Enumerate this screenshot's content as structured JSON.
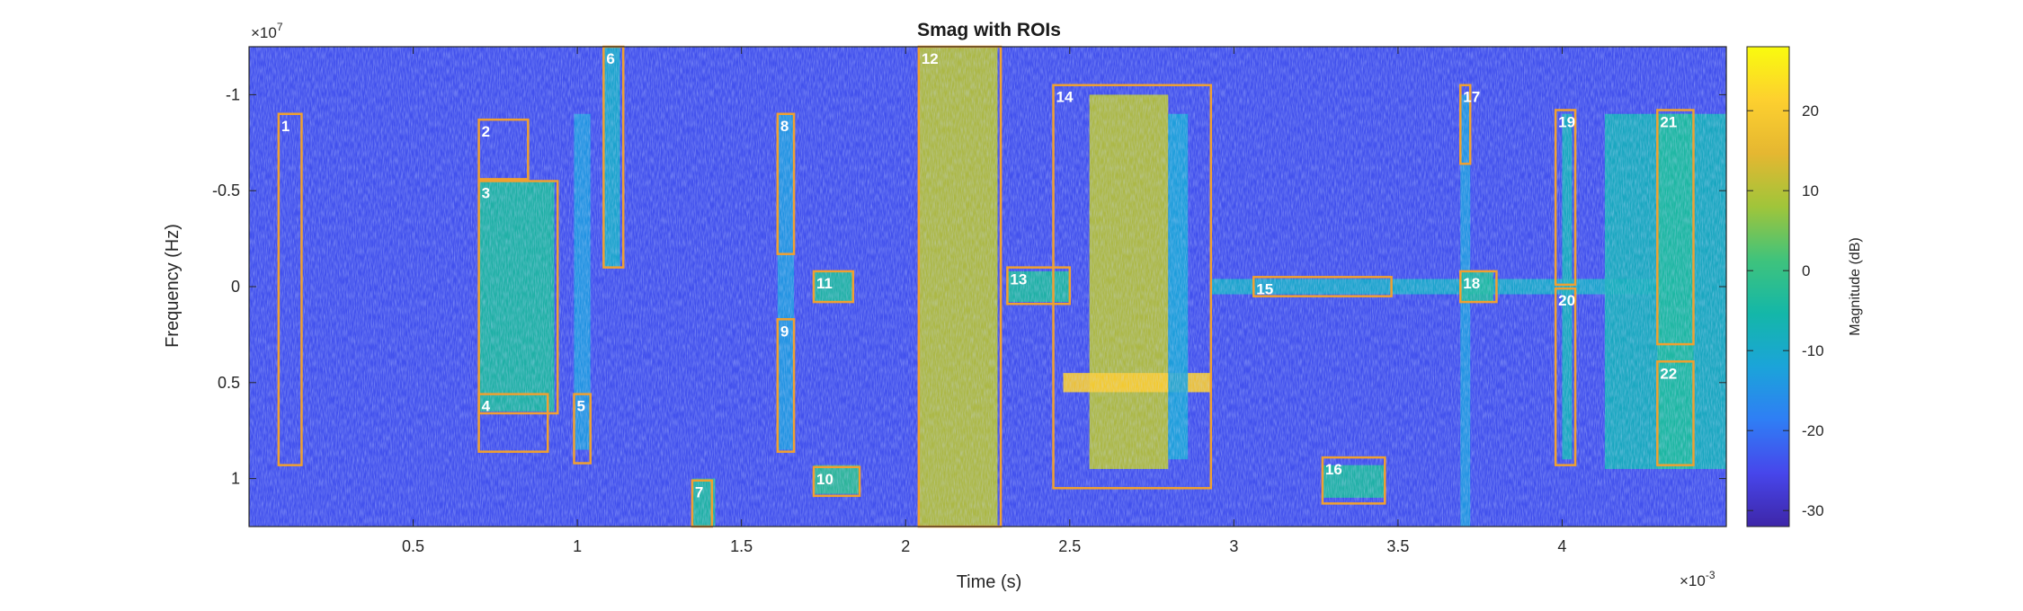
{
  "chart_data": {
    "type": "heatmap",
    "title": "Smag with ROIs",
    "xlabel": "Time (s)",
    "ylabel": "Frequency (Hz)",
    "x_exponent": "×10",
    "x_exponent_power": "-3",
    "y_exponent": "×10",
    "y_exponent_power": "7",
    "xlim": [
      0,
      4.5
    ],
    "ylim": [
      -1.25,
      1.25
    ],
    "y_reversed": true,
    "x_ticks": [
      {
        "value": 0.5,
        "label": "0.5"
      },
      {
        "value": 1,
        "label": "1"
      },
      {
        "value": 1.5,
        "label": "1.5"
      },
      {
        "value": 2,
        "label": "2"
      },
      {
        "value": 2.5,
        "label": "2.5"
      },
      {
        "value": 3,
        "label": "3"
      },
      {
        "value": 3.5,
        "label": "3.5"
      },
      {
        "value": 4,
        "label": "4"
      }
    ],
    "y_ticks": [
      {
        "value": -1,
        "label": "-1"
      },
      {
        "value": -0.5,
        "label": "-0.5"
      },
      {
        "value": 0,
        "label": "0"
      },
      {
        "value": 0.5,
        "label": "0.5"
      },
      {
        "value": 1,
        "label": "1"
      }
    ],
    "colorbar": {
      "label": "Magnitude (dB)",
      "range": [
        -32,
        28
      ],
      "ticks": [
        {
          "value": 20,
          "label": "20"
        },
        {
          "value": 10,
          "label": "10"
        },
        {
          "value": 0,
          "label": "0"
        },
        {
          "value": -10,
          "label": "-10"
        },
        {
          "value": -20,
          "label": "-20"
        },
        {
          "value": -30,
          "label": "-30"
        }
      ]
    },
    "colormap": [
      "#3e26a8",
      "#4746eb",
      "#2f7ef5",
      "#1ba4d9",
      "#14b7a8",
      "#3fc37c",
      "#a0c53a",
      "#e5b731",
      "#fdd02f",
      "#f9fb0e"
    ],
    "roi_color": "#f0a030",
    "background_level_db": -24,
    "signal_regions": [
      {
        "t": [
          0.7,
          0.93
        ],
        "f": [
          -0.55,
          0.65
        ],
        "level_db": -4
      },
      {
        "t": [
          0.99,
          1.04
        ],
        "f": [
          -0.9,
          0.85
        ],
        "level_db": -14
      },
      {
        "t": [
          1.08,
          1.13
        ],
        "f": [
          -1.25,
          -0.1
        ],
        "level_db": -10
      },
      {
        "t": [
          1.35,
          1.42
        ],
        "f": [
          1.0,
          1.25
        ],
        "level_db": -4
      },
      {
        "t": [
          1.61,
          1.66
        ],
        "f": [
          -0.9,
          0.85
        ],
        "level_db": -14
      },
      {
        "t": [
          1.72,
          1.84
        ],
        "f": [
          -0.08,
          0.08
        ],
        "level_db": -4
      },
      {
        "t": [
          1.72,
          1.86
        ],
        "f": [
          0.93,
          1.08
        ],
        "level_db": -2
      },
      {
        "t": [
          2.04,
          2.28
        ],
        "f": [
          -1.25,
          1.25
        ],
        "level_db": 10
      },
      {
        "t": [
          2.31,
          2.5
        ],
        "f": [
          -0.08,
          0.08
        ],
        "level_db": -4
      },
      {
        "t": [
          2.56,
          2.8
        ],
        "f": [
          -1.0,
          0.95
        ],
        "level_db": 10
      },
      {
        "t": [
          2.48,
          2.93
        ],
        "f": [
          0.45,
          0.55
        ],
        "level_db": 20
      },
      {
        "t": [
          2.8,
          2.86
        ],
        "f": [
          -0.9,
          0.9
        ],
        "level_db": -12
      },
      {
        "t": [
          2.93,
          4.35
        ],
        "f": [
          -0.04,
          0.04
        ],
        "level_db": -10
      },
      {
        "t": [
          3.27,
          3.46
        ],
        "f": [
          0.93,
          1.1
        ],
        "level_db": -4
      },
      {
        "t": [
          3.69,
          3.72
        ],
        "f": [
          -1.0,
          1.25
        ],
        "level_db": -14
      },
      {
        "t": [
          3.69,
          3.79
        ],
        "f": [
          -0.08,
          0.08
        ],
        "level_db": -4
      },
      {
        "t": [
          4.0,
          4.03
        ],
        "f": [
          -0.9,
          0.9
        ],
        "level_db": -8
      },
      {
        "t": [
          4.13,
          4.5
        ],
        "f": [
          -0.9,
          0.95
        ],
        "level_db": -8
      },
      {
        "t": [
          4.29,
          4.4
        ],
        "f": [
          -0.9,
          0.95
        ],
        "level_db": -4
      }
    ],
    "rois": [
      {
        "label": "1",
        "t": [
          0.09,
          0.16
        ],
        "f": [
          -0.9,
          0.93
        ]
      },
      {
        "label": "2",
        "t": [
          0.7,
          0.85
        ],
        "f": [
          -0.87,
          -0.56
        ]
      },
      {
        "label": "3",
        "t": [
          0.7,
          0.94
        ],
        "f": [
          -0.55,
          0.66
        ]
      },
      {
        "label": "4",
        "t": [
          0.7,
          0.91
        ],
        "f": [
          0.56,
          0.86
        ]
      },
      {
        "label": "5",
        "t": [
          0.99,
          1.04
        ],
        "f": [
          0.56,
          0.92
        ]
      },
      {
        "label": "6",
        "t": [
          1.08,
          1.14
        ],
        "f": [
          -1.25,
          -0.1
        ]
      },
      {
        "label": "7",
        "t": [
          1.35,
          1.41
        ],
        "f": [
          1.01,
          1.25
        ]
      },
      {
        "label": "8",
        "t": [
          1.61,
          1.66
        ],
        "f": [
          -0.9,
          -0.17
        ]
      },
      {
        "label": "9",
        "t": [
          1.61,
          1.66
        ],
        "f": [
          0.17,
          0.86
        ]
      },
      {
        "label": "10",
        "t": [
          1.72,
          1.86
        ],
        "f": [
          0.94,
          1.09
        ]
      },
      {
        "label": "11",
        "t": [
          1.72,
          1.84
        ],
        "f": [
          -0.08,
          0.08
        ]
      },
      {
        "label": "12",
        "t": [
          2.04,
          2.29
        ],
        "f": [
          -1.25,
          1.25
        ]
      },
      {
        "label": "13",
        "t": [
          2.31,
          2.5
        ],
        "f": [
          -0.1,
          0.09
        ]
      },
      {
        "label": "14",
        "t": [
          2.45,
          2.93
        ],
        "f": [
          -1.05,
          1.05
        ]
      },
      {
        "label": "15",
        "t": [
          3.06,
          3.48
        ],
        "f": [
          -0.05,
          0.05
        ]
      },
      {
        "label": "16",
        "t": [
          3.27,
          3.46
        ],
        "f": [
          0.89,
          1.13
        ]
      },
      {
        "label": "17",
        "t": [
          3.69,
          3.72
        ],
        "f": [
          -1.05,
          -0.64
        ]
      },
      {
        "label": "18",
        "t": [
          3.69,
          3.8
        ],
        "f": [
          -0.08,
          0.08
        ]
      },
      {
        "label": "19",
        "t": [
          3.98,
          4.04
        ],
        "f": [
          -0.92,
          -0.01
        ]
      },
      {
        "label": "20",
        "t": [
          3.98,
          4.04
        ],
        "f": [
          0.01,
          0.93
        ]
      },
      {
        "label": "21",
        "t": [
          4.29,
          4.4
        ],
        "f": [
          -0.92,
          0.3
        ]
      },
      {
        "label": "22",
        "t": [
          4.29,
          4.4
        ],
        "f": [
          0.39,
          0.93
        ]
      }
    ]
  }
}
